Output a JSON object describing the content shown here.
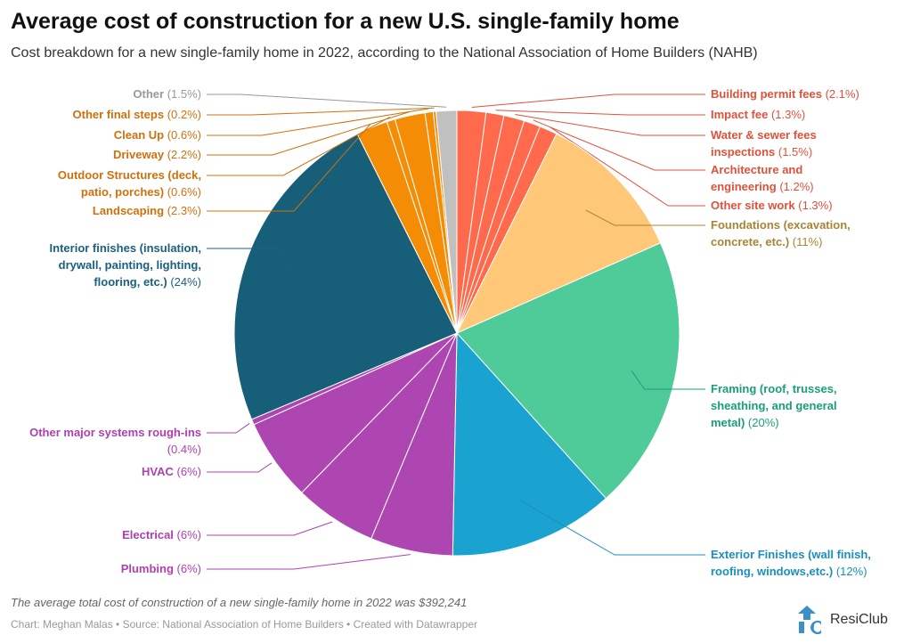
{
  "header": {
    "title": "Average cost of construction for a new U.S. single-family home",
    "subtitle": "Cost breakdown for a new single-family home in 2022, according to the National Association of Home Builders (NAHB)"
  },
  "chart_data": {
    "type": "pie",
    "title": "Average cost of construction for a new U.S. single-family home",
    "unit": "%",
    "slices": [
      {
        "name": "Building permit fees",
        "label": "(2.1%)",
        "value": 2.1,
        "color": "#fe6a4b",
        "text_color": "#e0513a"
      },
      {
        "name": "Impact fee",
        "label": "(1.3%)",
        "value": 1.3,
        "color": "#fe6a4b",
        "text_color": "#e0513a"
      },
      {
        "name": "Water & sewer fees inspections",
        "label": "(1.5%)",
        "value": 1.5,
        "color": "#fe6a4b",
        "text_color": "#e0513a"
      },
      {
        "name": "Architecture and engineering",
        "label": "(1.2%)",
        "value": 1.2,
        "color": "#fe6a4b",
        "text_color": "#e0513a"
      },
      {
        "name": "Other site work",
        "label": "(1.3%)",
        "value": 1.3,
        "color": "#fe6a4b",
        "text_color": "#e0513a"
      },
      {
        "name": "Foundations (excavation, concrete, etc.)",
        "label": "(11%)",
        "value": 11,
        "color": "#fec878",
        "text_color": "#a88535"
      },
      {
        "name": "Framing (roof, trusses, sheathing, and general metal)",
        "label": "(20%)",
        "value": 20,
        "color": "#4ecb98",
        "text_color": "#17a075"
      },
      {
        "name": "Exterior Finishes (wall finish, roofing, windows,etc.)",
        "label": "(12%)",
        "value": 12,
        "color": "#1aa3d0",
        "text_color": "#1a8fbf"
      },
      {
        "name": "Plumbing",
        "label": "(6%)",
        "value": 6,
        "color": "#ad46b0",
        "text_color": "#b040b0"
      },
      {
        "name": "Electrical",
        "label": "(6%)",
        "value": 6,
        "color": "#ad46b0",
        "text_color": "#b040b0"
      },
      {
        "name": "HVAC",
        "label": "(6%)",
        "value": 6,
        "color": "#ad46b0",
        "text_color": "#b040b0"
      },
      {
        "name": "Other major systems rough-ins",
        "label": "(0.4%)",
        "value": 0.4,
        "color": "#ad46b0",
        "text_color": "#b040b0"
      },
      {
        "name": "Interior finishes (insulation, drywall, painting, lighting, flooring, etc.)",
        "label": "(24%)",
        "value": 24,
        "color": "#175f79",
        "text_color": "#1a6080"
      },
      {
        "name": "Landscaping",
        "label": "(2.3%)",
        "value": 2.3,
        "color": "#f48c06",
        "text_color": "#d0700c"
      },
      {
        "name": "Outdoor Structures (deck, patio, porches)",
        "label": "(0.6%)",
        "value": 0.6,
        "color": "#f48c06",
        "text_color": "#d0700c"
      },
      {
        "name": "Driveway",
        "label": "(2.2%)",
        "value": 2.2,
        "color": "#f48c06",
        "text_color": "#d0700c"
      },
      {
        "name": "Clean Up",
        "label": "(0.6%)",
        "value": 0.6,
        "color": "#f48c06",
        "text_color": "#d0700c"
      },
      {
        "name": "Other final steps",
        "label": "(0.2%)",
        "value": 0.2,
        "color": "#f48c06",
        "text_color": "#d0700c"
      },
      {
        "name": "Other",
        "label": "(1.5%)",
        "value": 1.5,
        "color": "#c0c0c0",
        "text_color": "#999999"
      }
    ]
  },
  "footer": {
    "note": "The average total cost of construction of a new single-family home in 2022 was $392,241",
    "source": "Chart: Meghan Malas • Source: National Association of Home Builders • Created with Datawrapper",
    "logo_text": "ResiClub"
  }
}
